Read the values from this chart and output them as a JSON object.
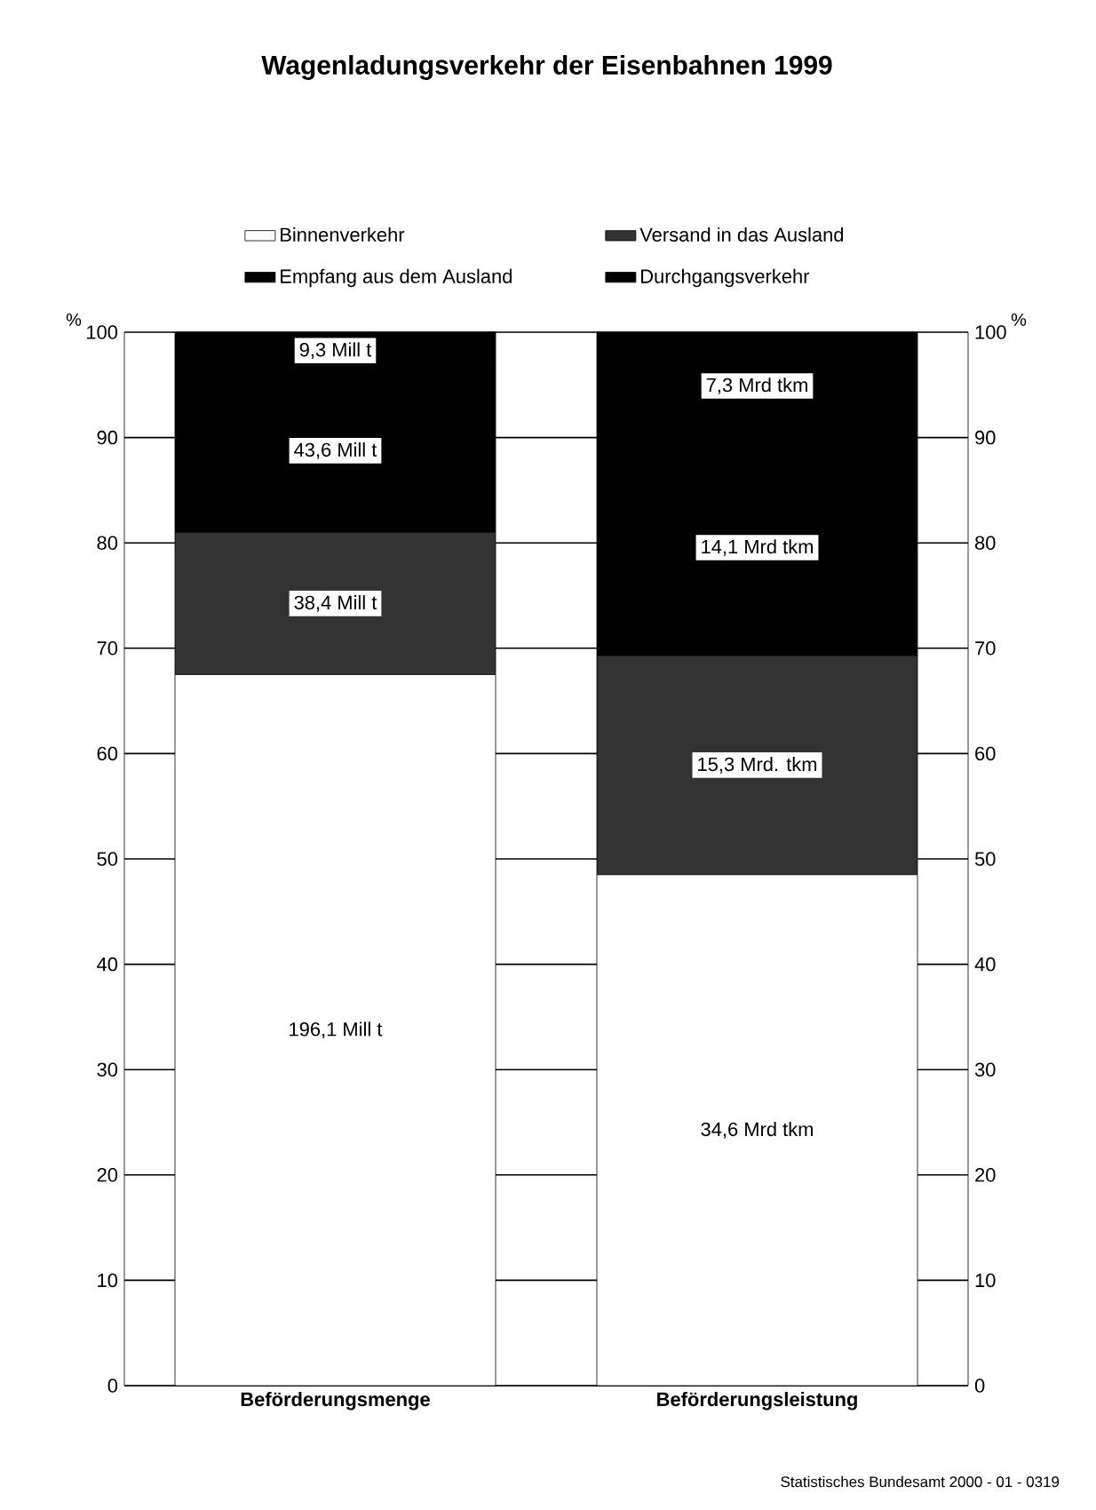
{
  "chart_data": {
    "type": "bar",
    "stacked": true,
    "title": "Wagenladungsverkehr der Eisenbahnen 1999",
    "categories": [
      "Beförderungsmenge",
      "Beförderungsleistung"
    ],
    "series": [
      {
        "name": "Binnenverkehr",
        "color": "#ffffff",
        "values": [
          67.5,
          48.5
        ]
      },
      {
        "name": "Versand in das Ausland",
        "color": "#333333",
        "values": [
          13.5,
          20.8
        ]
      },
      {
        "name": "Empfang aus dem Ausland",
        "color": "#000000",
        "values": [
          15.5,
          20.5
        ]
      },
      {
        "name": "Durchgangsverkehr",
        "color": "#000000",
        "values": [
          3.5,
          10.2
        ]
      }
    ],
    "ylabel": "%",
    "y2label": "%",
    "ylim": [
      0,
      100
    ],
    "yticks": [
      0,
      10,
      20,
      30,
      40,
      50,
      60,
      70,
      80,
      90,
      100
    ],
    "y2lim": [
      0,
      100
    ],
    "y2ticks": [
      0,
      10,
      20,
      30,
      40,
      50,
      60,
      70,
      80,
      90,
      100
    ],
    "grid": "y",
    "legend": "top",
    "annotations": [
      "196,1 Mill t",
      "38,4 Mill t",
      "43,6 Mill t",
      "9,3 Mill t",
      "34,6 Mrd tkm",
      "15,3 Mrd. tkm",
      "14,1 Mrd tkm",
      "7,3 Mrd tkm",
      "Statistisches Bundesamt 2000 - 01 - 0319"
    ]
  }
}
